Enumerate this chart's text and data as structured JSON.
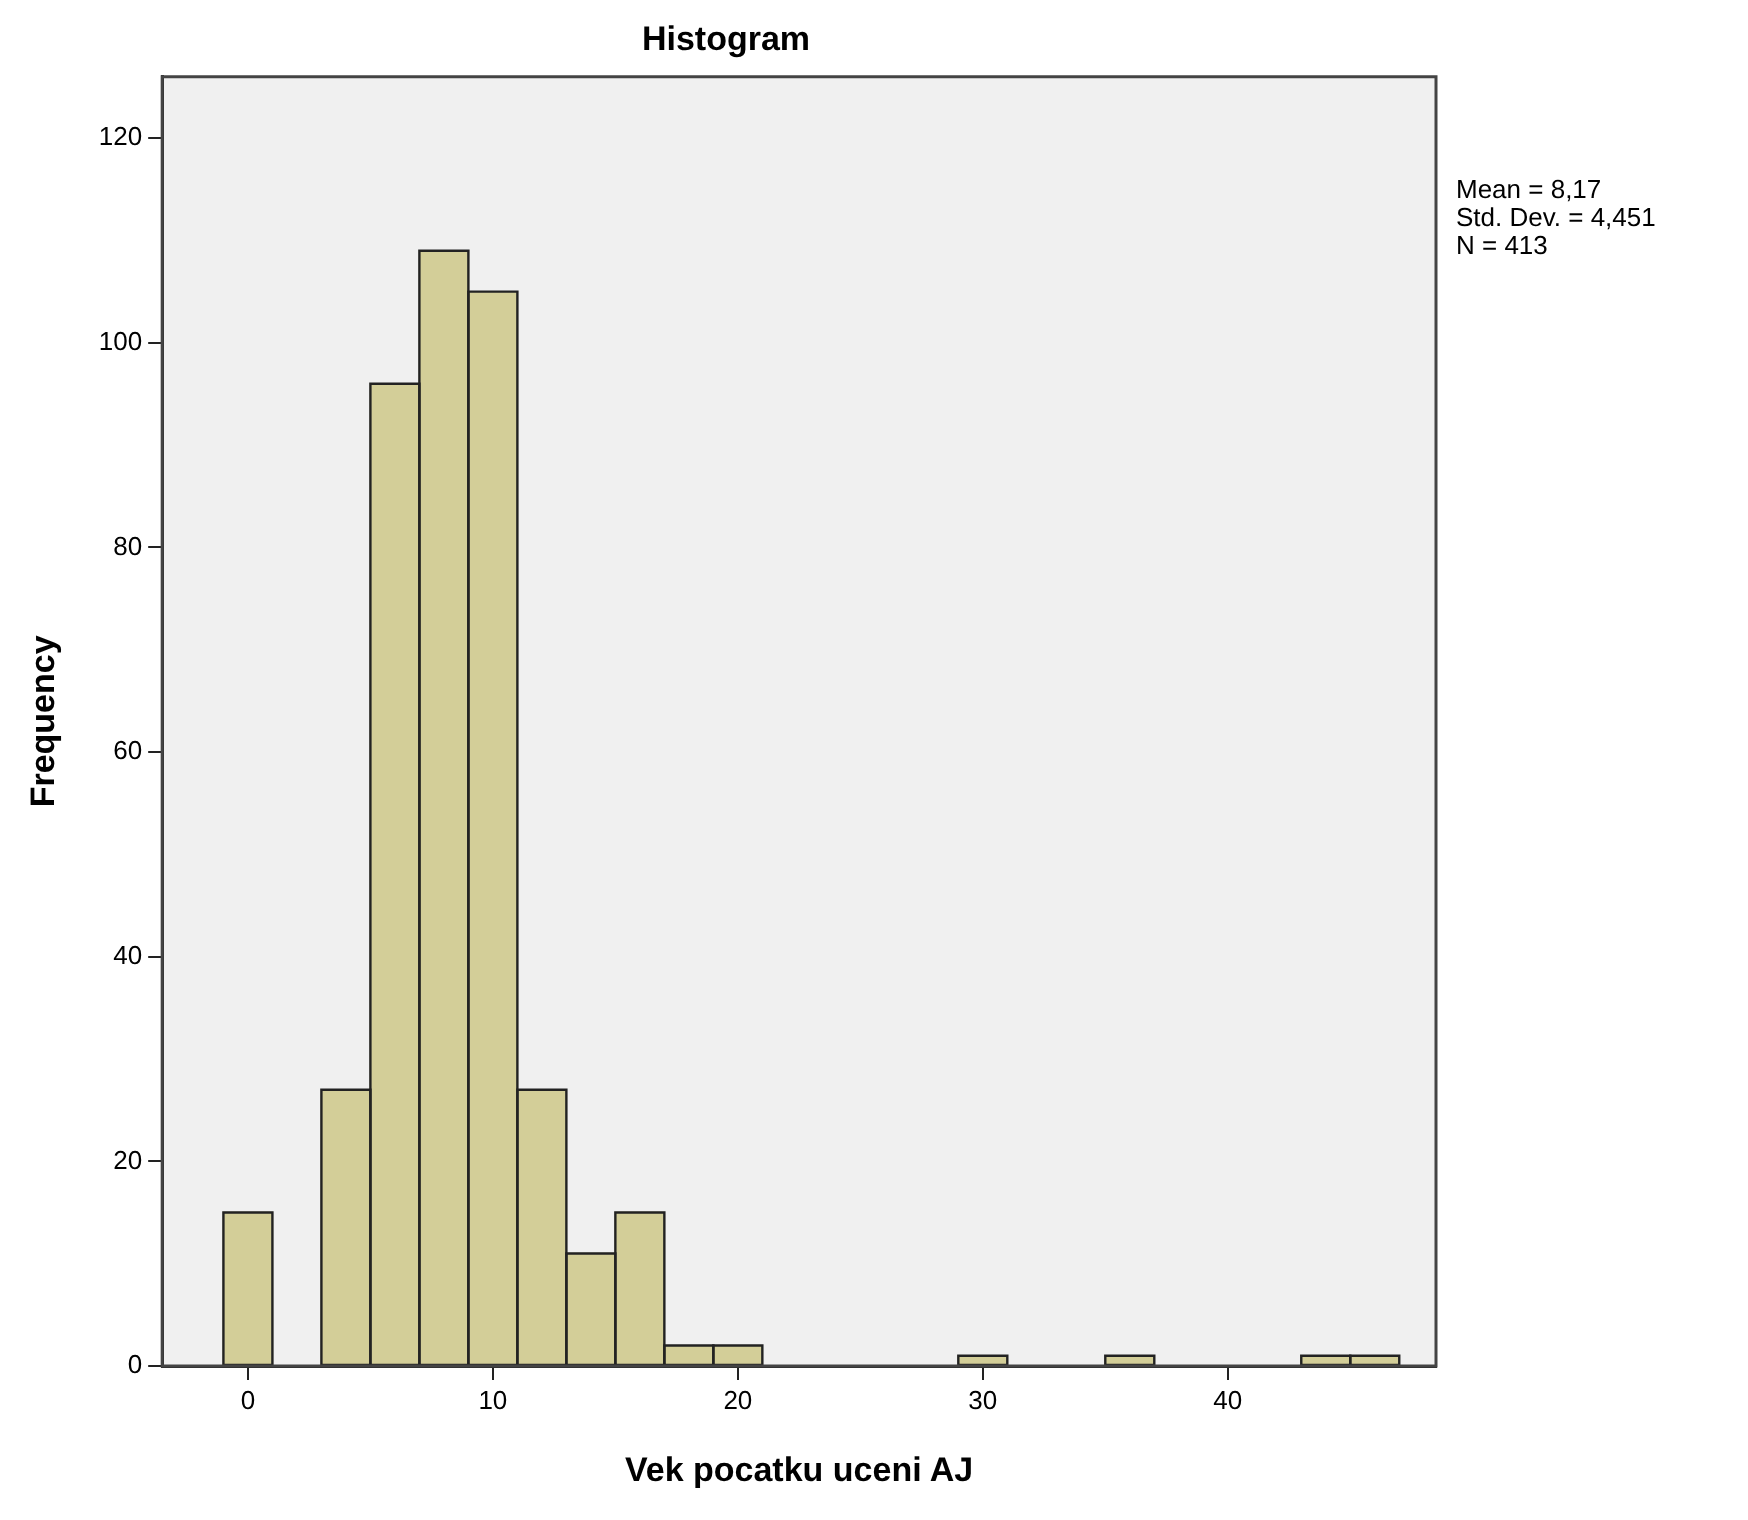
{
  "chart_data": {
    "type": "histogram",
    "title": "Histogram",
    "xlabel": "Vek pocatku uceni AJ",
    "ylabel": "Frequency",
    "bins": [
      -1,
      1,
      3,
      5,
      7,
      9,
      11,
      13,
      15,
      17,
      19,
      21,
      23,
      25,
      27,
      29,
      31,
      33,
      35,
      37,
      39,
      41,
      43,
      45,
      47
    ],
    "values": [
      15,
      0,
      27,
      96,
      109,
      105,
      27,
      11,
      15,
      2,
      2,
      0,
      0,
      0,
      0,
      1,
      0,
      0,
      1,
      0,
      0,
      0,
      1,
      1
    ],
    "color": "#d3ce98",
    "xlim": [
      -3.5,
      48.5
    ],
    "xticks": [
      0,
      10,
      20,
      30,
      40
    ],
    "ylim": [
      0,
      126
    ],
    "yticks": [
      0,
      20,
      40,
      60,
      80,
      100,
      120
    ],
    "grid": false,
    "legend": false,
    "annotations": [
      "Mean = 8,17",
      "Std. Dev. = 4,451",
      "N = 413"
    ]
  }
}
